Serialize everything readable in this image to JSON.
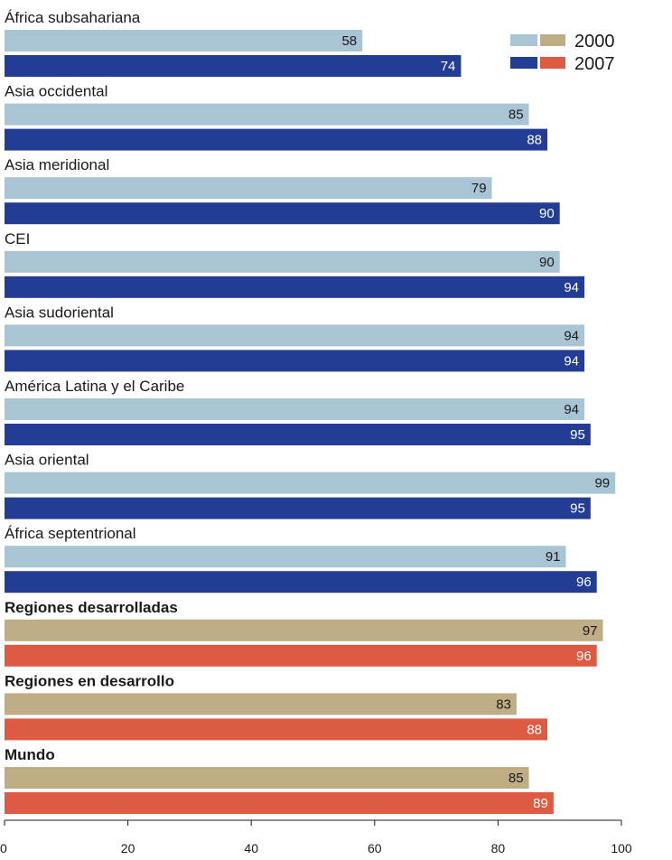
{
  "chart_data": {
    "type": "bar",
    "orientation": "horizontal",
    "legend": {
      "entries": [
        "2000",
        "2007"
      ],
      "position": "top-right"
    },
    "xlim": [
      0,
      100
    ],
    "xticks": [
      0,
      20,
      40,
      60,
      80,
      100
    ],
    "grid": false,
    "categories": [
      "África subsahariana",
      "Asia occidental",
      "Asia meridional",
      "CEI",
      "Asia sudoriental",
      "América Latina y el Caribe",
      "Asia oriental",
      "África septentrional",
      "Regiones desarrolladas",
      "Regiones en desarrollo",
      "Mundo"
    ],
    "bold_categories": [
      "Regiones desarrolladas",
      "Regiones en desarrollo",
      "Mundo"
    ],
    "series": [
      {
        "name": "2000",
        "values": [
          58,
          85,
          79,
          90,
          94,
          94,
          99,
          91,
          97,
          83,
          85
        ]
      },
      {
        "name": "2007",
        "values": [
          74,
          88,
          90,
          94,
          94,
          95,
          95,
          96,
          96,
          88,
          89
        ]
      }
    ],
    "colors": {
      "regional_2000": "#a9c4d4",
      "regional_2007": "#233d94",
      "aggregate_2000": "#bfad85",
      "aggregate_2007": "#de5a43"
    }
  }
}
